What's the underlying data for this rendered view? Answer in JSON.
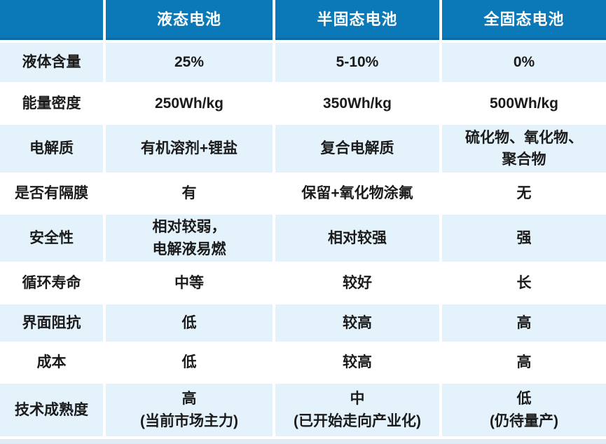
{
  "colors": {
    "header_bg": "#0b79b7",
    "header_border_bottom": "#0c6ba5",
    "header_text": "#ffffff",
    "row_alt_bg": "#e4f2fb",
    "row_bg": "#ffffff",
    "body_text": "#1b1b1b",
    "bottom_strip": "#dfeaf2"
  },
  "chart_data": {
    "type": "table",
    "title": "",
    "columns": [
      "",
      "液态电池",
      "半固态电池",
      "全固态电池"
    ],
    "rows": [
      {
        "label": "液体含量",
        "values": [
          "25%",
          "5-10%",
          "0%"
        ]
      },
      {
        "label": "能量密度",
        "values": [
          "250Wh/kg",
          "350Wh/kg",
          "500Wh/kg"
        ]
      },
      {
        "label": "电解质",
        "values": [
          "有机溶剂+锂盐",
          "复合电解质",
          [
            "硫化物、氧化物、",
            "聚合物"
          ]
        ]
      },
      {
        "label": "是否有隔膜",
        "values": [
          "有",
          "保留+氧化物涂氟",
          "无"
        ]
      },
      {
        "label": "安全性",
        "values": [
          [
            "相对较弱，",
            "电解液易燃"
          ],
          "相对较强",
          "强"
        ]
      },
      {
        "label": "循环寿命",
        "values": [
          "中等",
          "较好",
          "长"
        ]
      },
      {
        "label": "界面阻抗",
        "values": [
          "低",
          "较高",
          "高"
        ]
      },
      {
        "label": "成本",
        "values": [
          "低",
          "较高",
          "高"
        ]
      },
      {
        "label": "技术成熟度",
        "values": [
          [
            "高",
            "(当前市场主力)"
          ],
          [
            "中",
            "(已开始走向产业化)"
          ],
          [
            "低",
            "(仍待量产)"
          ]
        ]
      }
    ]
  }
}
